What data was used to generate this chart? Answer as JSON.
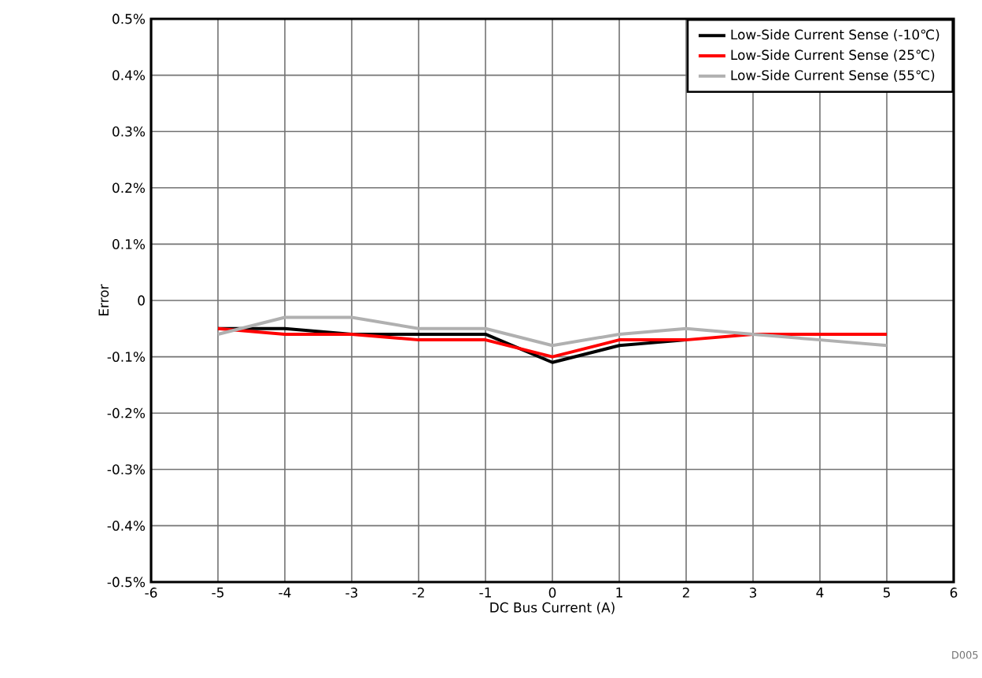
{
  "chart_data": {
    "type": "line",
    "xlabel": "DC Bus Current (A)",
    "ylabel": "Error",
    "x": [
      -5,
      -4,
      -3,
      -2,
      -1,
      0,
      1,
      2,
      3,
      4,
      5
    ],
    "series": [
      {
        "name": "Low-Side Current Sense (-10℃)",
        "color": "#000000",
        "values": [
          -0.05,
          -0.05,
          -0.06,
          -0.06,
          -0.06,
          -0.11,
          -0.08,
          -0.07,
          null,
          null,
          null
        ]
      },
      {
        "name": "Low-Side Current Sense (25℃)",
        "color": "#ff0000",
        "values": [
          -0.05,
          -0.06,
          -0.06,
          -0.07,
          -0.07,
          -0.1,
          -0.07,
          -0.07,
          -0.06,
          -0.06,
          -0.06
        ]
      },
      {
        "name": "Low-Side Current Sense (55℃)",
        "color": "#b0b0b0",
        "values": [
          -0.06,
          -0.03,
          -0.03,
          -0.05,
          -0.05,
          -0.08,
          -0.06,
          -0.05,
          -0.06,
          -0.07,
          -0.08
        ]
      }
    ],
    "xlim": [
      -6,
      6
    ],
    "xticks": [
      -6,
      -5,
      -4,
      -3,
      -2,
      -1,
      0,
      1,
      2,
      3,
      4,
      5,
      6
    ],
    "ylim": [
      -0.5,
      0.5
    ],
    "yticks": [
      {
        "value": -0.5,
        "label": "-0.5%"
      },
      {
        "value": -0.4,
        "label": "-0.4%"
      },
      {
        "value": -0.3,
        "label": "-0.3%"
      },
      {
        "value": -0.2,
        "label": "-0.2%"
      },
      {
        "value": -0.1,
        "label": "-0.1%"
      },
      0,
      {
        "value": 0.1,
        "label": "0.1%"
      },
      {
        "value": 0.2,
        "label": "0.2%"
      },
      {
        "value": 0.3,
        "label": "0.3%"
      },
      {
        "value": 0.4,
        "label": "0.4%"
      },
      {
        "value": 0.5,
        "label": "0.5%"
      }
    ],
    "grid": true,
    "legend": "top right",
    "marker": "none",
    "line_style": "solid",
    "annotations": [
      "D005"
    ]
  }
}
